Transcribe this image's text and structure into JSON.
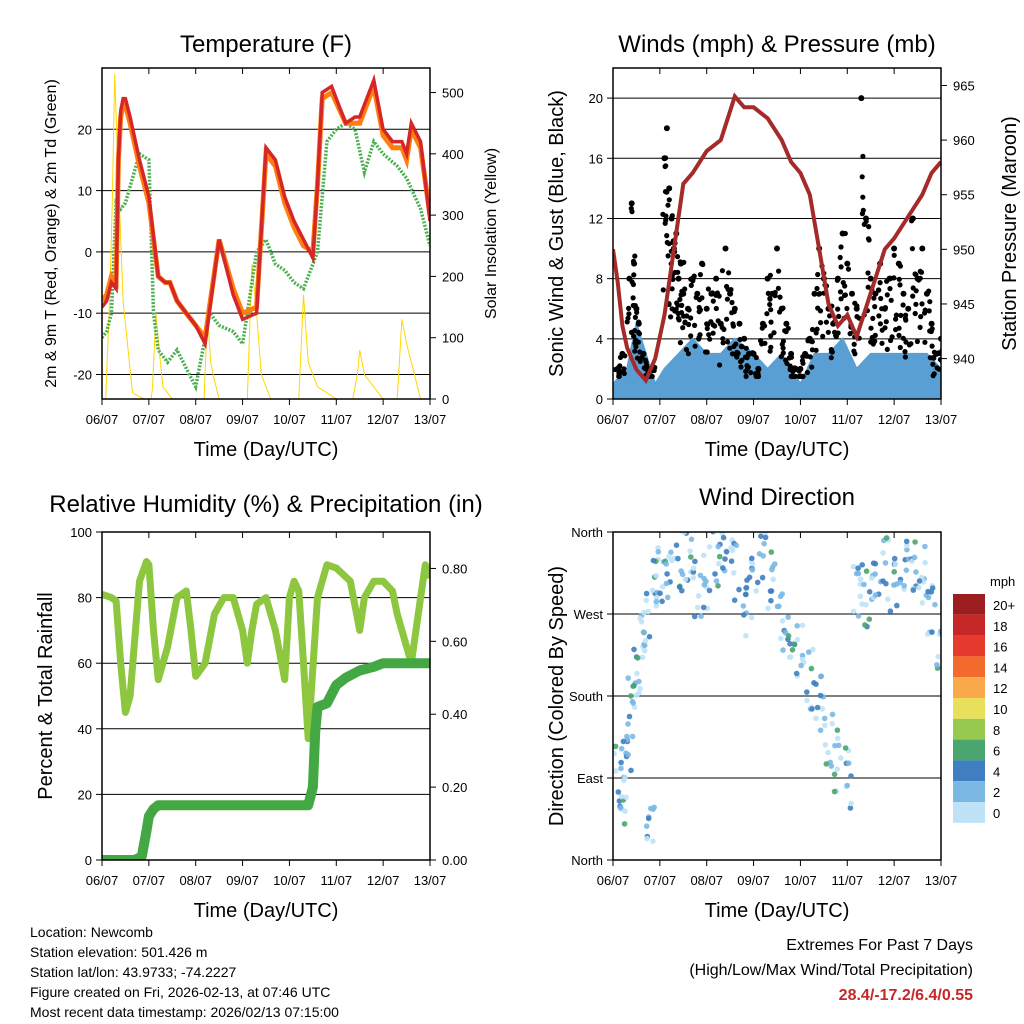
{
  "x_ticks": [
    "06/07",
    "07/07",
    "08/07",
    "09/07",
    "10/07",
    "11/07",
    "12/07",
    "13/07"
  ],
  "x_axis_label": "Time (Day/UTC)",
  "chart_data": [
    {
      "type": "line",
      "title": "Temperature (F)",
      "ylabel": "2m & 9m T (Red, Orange) & 2m Td (Green)",
      "y2label": "Solar Insolation (Yellow)",
      "ylim": [
        -24,
        30
      ],
      "y2lim": [
        0,
        540
      ],
      "yticks": [
        -20,
        -10,
        0,
        10,
        20
      ],
      "y2ticks": [
        0,
        100,
        200,
        300,
        400,
        500
      ],
      "series": [
        {
          "name": "2m T",
          "color": "#d62728",
          "x": [
            0,
            0.1,
            0.2,
            0.3,
            0.35,
            0.4,
            0.45,
            0.5,
            0.6,
            0.8,
            1.0,
            1.2,
            1.35,
            1.45,
            1.6,
            1.8,
            2.0,
            2.2,
            2.5,
            2.8,
            3.0,
            3.3,
            3.5,
            3.7,
            3.9,
            4.1,
            4.3,
            4.5,
            4.6,
            4.7,
            4.9,
            5.2,
            5.4,
            5.5,
            5.6,
            5.8,
            6.0,
            6.2,
            6.4,
            6.5,
            6.6,
            6.8,
            7.0
          ],
          "values": [
            -9,
            -8,
            -5,
            -6,
            15,
            23,
            25,
            25,
            22,
            15,
            9,
            -4,
            -5,
            -5,
            -8,
            -10,
            -12,
            -15,
            2,
            -7,
            -11,
            -10,
            17,
            15,
            9,
            5,
            2,
            -1,
            11,
            26,
            27,
            21,
            22,
            22,
            24,
            28,
            20,
            18,
            18,
            16,
            21,
            18,
            5
          ]
        },
        {
          "name": "9m T",
          "color": "#ff7f0e",
          "x": [
            0,
            0.1,
            0.2,
            0.3,
            0.35,
            0.4,
            0.45,
            0.5,
            0.6,
            0.8,
            1.0,
            1.2,
            1.35,
            1.45,
            1.6,
            1.8,
            2.0,
            2.2,
            2.5,
            2.8,
            3.0,
            3.3,
            3.5,
            3.7,
            3.9,
            4.1,
            4.3,
            4.5,
            4.6,
            4.7,
            4.9,
            5.2,
            5.4,
            5.5,
            5.6,
            5.8,
            6.0,
            6.2,
            6.4,
            6.5,
            6.6,
            6.8,
            7.0
          ],
          "values": [
            -8,
            -7,
            -4,
            -5,
            15,
            22,
            24,
            24,
            21,
            14,
            8,
            -4,
            -5,
            -5,
            -8,
            -10,
            -12,
            -14,
            2,
            -6,
            -10,
            -9,
            16,
            14,
            8,
            4,
            1,
            0,
            11,
            25,
            26,
            21,
            21,
            21,
            23,
            27,
            19,
            17,
            17,
            15,
            20,
            17,
            6
          ]
        },
        {
          "name": "2m Td",
          "color": "#4caf50",
          "x": [
            0,
            0.1,
            0.2,
            0.3,
            0.4,
            0.5,
            0.8,
            1.0,
            1.1,
            1.2,
            1.4,
            1.6,
            1.8,
            2.0,
            2.3,
            2.5,
            2.8,
            3.0,
            3.3,
            3.5,
            3.7,
            3.9,
            4.1,
            4.3,
            4.6,
            4.8,
            5.0,
            5.2,
            5.4,
            5.6,
            5.8,
            6.0,
            6.3,
            6.5,
            6.8,
            7.0
          ],
          "values": [
            -14,
            -13,
            -10,
            8,
            7,
            8,
            16,
            15,
            -10,
            -16,
            -18,
            -16,
            -19,
            -22,
            -10,
            -12,
            -13,
            -15,
            0,
            2,
            -2,
            -3,
            -5,
            -6,
            0,
            18,
            20,
            21,
            20,
            13,
            18,
            16,
            14,
            12,
            7,
            1
          ]
        },
        {
          "name": "Solar Insolation",
          "color": "#ffd700",
          "axis": "y2",
          "x": [
            0,
            0.08,
            0.12,
            0.17,
            0.22,
            0.27,
            0.32,
            0.45,
            0.65,
            0.9,
            1.05,
            1.08,
            1.15,
            1.22,
            1.3,
            1.5,
            2.0,
            2.18,
            2.25,
            2.32,
            2.4,
            2.5,
            3.0,
            3.1,
            3.2,
            3.3,
            3.4,
            3.6,
            4.0,
            4.2,
            4.3,
            4.4,
            4.6,
            5.0,
            5.35,
            5.45,
            5.5,
            5.6,
            6.0,
            6.3,
            6.4,
            6.5,
            6.6,
            6.8,
            7.0
          ],
          "values": [
            0,
            0,
            80,
            180,
            320,
            530,
            420,
            160,
            10,
            0,
            0,
            20,
            140,
            80,
            20,
            0,
            0,
            0,
            140,
            60,
            30,
            0,
            0,
            0,
            220,
            140,
            40,
            0,
            0,
            0,
            170,
            60,
            20,
            0,
            0,
            40,
            80,
            40,
            0,
            0,
            130,
            90,
            60,
            0,
            0
          ]
        }
      ]
    },
    {
      "type": "scatter",
      "title": "Winds (mph) & Pressure (mb)",
      "ylabel": "Sonic Wind & Gust (Blue, Black)",
      "y2label": "Station Pressure (Maroon)",
      "ylim": [
        0,
        22
      ],
      "y2lim": [
        936.3,
        966.6
      ],
      "yticks": [
        0,
        4,
        8,
        12,
        16,
        20
      ],
      "y2ticks": [
        940,
        945,
        950,
        955,
        960,
        965
      ],
      "series": [
        {
          "name": "Station Pressure",
          "type": "line",
          "color": "#a52a2a",
          "axis": "y2",
          "x": [
            0,
            0.1,
            0.2,
            0.3,
            0.4,
            0.5,
            0.7,
            0.9,
            1.1,
            1.3,
            1.5,
            1.7,
            2.0,
            2.3,
            2.6,
            2.8,
            3.0,
            3.3,
            3.6,
            3.8,
            4.0,
            4.2,
            4.4,
            4.6,
            4.8,
            5.0,
            5.2,
            5.5,
            5.8,
            6.0,
            6.3,
            6.6,
            6.8,
            7.0
          ],
          "values": [
            950,
            947,
            943,
            941,
            940,
            939,
            938,
            940,
            944,
            950,
            956,
            957,
            959,
            960,
            964,
            963,
            963,
            962,
            960,
            958,
            957,
            955,
            950,
            945,
            943,
            944,
            942,
            946,
            950,
            951,
            953,
            955,
            957,
            958
          ]
        },
        {
          "name": "Sonic Wind",
          "type": "band",
          "color": "#5a9fd4",
          "x": [
            0,
            0.3,
            0.5,
            0.7,
            0.9,
            1.1,
            1.4,
            1.7,
            2.0,
            2.3,
            2.6,
            3.0,
            3.3,
            3.6,
            4.0,
            4.3,
            4.6,
            4.9,
            5.2,
            5.5,
            5.8,
            6.1,
            6.4,
            6.7,
            7.0
          ],
          "values": [
            1,
            2,
            5,
            3,
            1,
            2,
            3,
            4,
            3,
            3,
            4,
            3,
            2,
            3,
            1,
            3,
            3,
            4,
            2,
            3,
            3,
            3,
            3,
            3,
            2
          ]
        },
        {
          "name": "Gust",
          "type": "scatter",
          "color": "#000000",
          "x": [
            0.1,
            0.2,
            0.35,
            0.4,
            0.45,
            0.5,
            0.55,
            0.65,
            0.75,
            0.85,
            1.1,
            1.15,
            1.2,
            1.25,
            1.3,
            1.35,
            1.4,
            1.45,
            1.5,
            1.6,
            1.7,
            1.8,
            1.9,
            2.0,
            2.1,
            2.2,
            2.3,
            2.4,
            2.5,
            2.6,
            2.7,
            2.8,
            2.9,
            3.0,
            3.1,
            3.2,
            3.3,
            3.4,
            3.5,
            3.6,
            3.7,
            3.8,
            3.9,
            4.0,
            4.1,
            4.2,
            4.3,
            4.4,
            4.5,
            4.6,
            4.7,
            4.8,
            4.9,
            5.0,
            5.1,
            5.2,
            5.3,
            5.4,
            5.5,
            5.6,
            5.7,
            5.8,
            5.9,
            6.0,
            6.1,
            6.2,
            6.3,
            6.4,
            6.5,
            6.6,
            6.7,
            6.8,
            6.9,
            7.0
          ],
          "values": [
            2,
            3,
            8,
            13,
            9,
            6,
            5,
            3,
            2,
            2,
            16,
            18,
            14,
            12,
            10,
            11,
            8,
            9,
            7,
            6,
            8,
            7,
            9,
            6,
            7,
            8,
            5,
            10,
            7,
            6,
            5,
            4,
            3,
            3,
            2,
            5,
            8,
            7,
            10,
            6,
            5,
            3,
            2,
            2,
            3,
            4,
            7,
            10,
            8,
            6,
            5,
            8,
            11,
            9,
            7,
            6,
            20,
            12,
            8,
            7,
            9,
            6,
            8,
            10,
            9,
            7,
            6,
            12,
            8,
            10,
            7,
            5,
            3,
            4
          ]
        }
      ]
    },
    {
      "type": "line",
      "title": "Relative Humidity (%) & Precipitation (in)",
      "ylabel": "Percent & Total Rainfall",
      "ylim": [
        0,
        100
      ],
      "y2lim": [
        0,
        0.9
      ],
      "yticks": [
        0,
        20,
        40,
        60,
        80,
        100
      ],
      "y2ticks": [
        0.0,
        0.2,
        0.4,
        0.6,
        0.8
      ],
      "y2tick_labels": [
        "0.00",
        "0.20",
        "0.40",
        "0.60",
        "0.80"
      ],
      "series": [
        {
          "name": "Relative Humidity",
          "color": "#8dc63f",
          "x": [
            0,
            0.2,
            0.3,
            0.4,
            0.5,
            0.6,
            0.8,
            0.95,
            1.0,
            1.1,
            1.2,
            1.4,
            1.6,
            1.8,
            1.9,
            2.0,
            2.2,
            2.4,
            2.6,
            2.8,
            3.0,
            3.1,
            3.2,
            3.3,
            3.5,
            3.7,
            3.9,
            4.0,
            4.1,
            4.2,
            4.3,
            4.4,
            4.6,
            4.7,
            4.8,
            5.0,
            5.3,
            5.5,
            5.6,
            5.8,
            6.0,
            6.2,
            6.3,
            6.4,
            6.5,
            6.6,
            6.8,
            6.9,
            7.0
          ],
          "values": [
            81,
            80,
            79,
            60,
            45,
            50,
            85,
            91,
            90,
            70,
            55,
            65,
            80,
            82,
            70,
            56,
            60,
            75,
            80,
            80,
            70,
            60,
            70,
            78,
            80,
            70,
            55,
            80,
            85,
            82,
            60,
            37,
            80,
            85,
            90,
            89,
            85,
            70,
            80,
            85,
            85,
            82,
            75,
            70,
            65,
            60,
            80,
            90,
            86
          ]
        },
        {
          "name": "Total Precipitation",
          "color": "#43a843",
          "axis": "y2",
          "x": [
            0,
            0.7,
            0.85,
            0.95,
            1.0,
            1.1,
            1.2,
            1.3,
            2.0,
            3.0,
            4.0,
            4.4,
            4.5,
            4.55,
            4.6,
            4.8,
            5.0,
            5.2,
            5.5,
            5.8,
            6.0,
            6.5,
            7.0
          ],
          "values": [
            0,
            0,
            0.01,
            0.08,
            0.12,
            0.14,
            0.15,
            0.15,
            0.15,
            0.15,
            0.15,
            0.15,
            0.2,
            0.35,
            0.42,
            0.43,
            0.48,
            0.5,
            0.52,
            0.53,
            0.54,
            0.54,
            0.54
          ]
        }
      ]
    },
    {
      "type": "scatter",
      "title": "Wind Direction",
      "ylabel": "Direction (Colored By Speed)",
      "yticks": [
        "North",
        "East",
        "South",
        "West",
        "North"
      ],
      "ylim": [
        0,
        360
      ],
      "colorbar_label": "mph",
      "colorbar_ticks": [
        "20+",
        "18",
        "16",
        "14",
        "12",
        "10",
        "8",
        "6",
        "4",
        "2",
        "0"
      ],
      "colorbar_colors": [
        "#9b1d20",
        "#c62828",
        "#e63a2e",
        "#f36b2c",
        "#f9a84a",
        "#e8e05a",
        "#98c94f",
        "#4aa56e",
        "#3f7fc1",
        "#7ab8e3",
        "#bfe3f6"
      ],
      "series": [
        {
          "name": "Wind Direction",
          "color": "#5a9fd4",
          "x": [
            0.1,
            0.2,
            0.3,
            0.4,
            0.5,
            0.6,
            0.7,
            0.8,
            0.9,
            1.0,
            1.2,
            1.4,
            1.6,
            1.8,
            2.0,
            2.2,
            2.4,
            2.6,
            2.8,
            3.0,
            3.2,
            3.4,
            3.6,
            3.8,
            4.0,
            4.2,
            4.4,
            4.6,
            4.8,
            5.0,
            5.2,
            5.4,
            5.6,
            5.8,
            6.0,
            6.2,
            6.4,
            6.6,
            6.8,
            7.0
          ],
          "values": [
            90,
            60,
            120,
            170,
            200,
            240,
            260,
            30,
            300,
            310,
            320,
            330,
            340,
            300,
            310,
            330,
            345,
            320,
            280,
            300,
            340,
            310,
            260,
            250,
            230,
            200,
            170,
            130,
            110,
            90,
            300,
            290,
            310,
            320,
            300,
            320,
            330,
            310,
            270,
            240
          ]
        }
      ]
    }
  ],
  "info": {
    "location": "Location: Newcomb",
    "elevation": "Station elevation: 501.426 m",
    "latlon": "Station lat/lon: 43.9733; -74.2227",
    "created": "Figure created on Fri, 2026-02-13, at 07:46 UTC",
    "recent": "Most recent data timestamp: 2026/02/13 07:15:00"
  },
  "extremes": {
    "title": "Extremes For Past 7 Days",
    "subtitle": "(High/Low/Max Wind/Total Precipitation)",
    "values": "28.4/-17.2/6.4/0.55"
  }
}
